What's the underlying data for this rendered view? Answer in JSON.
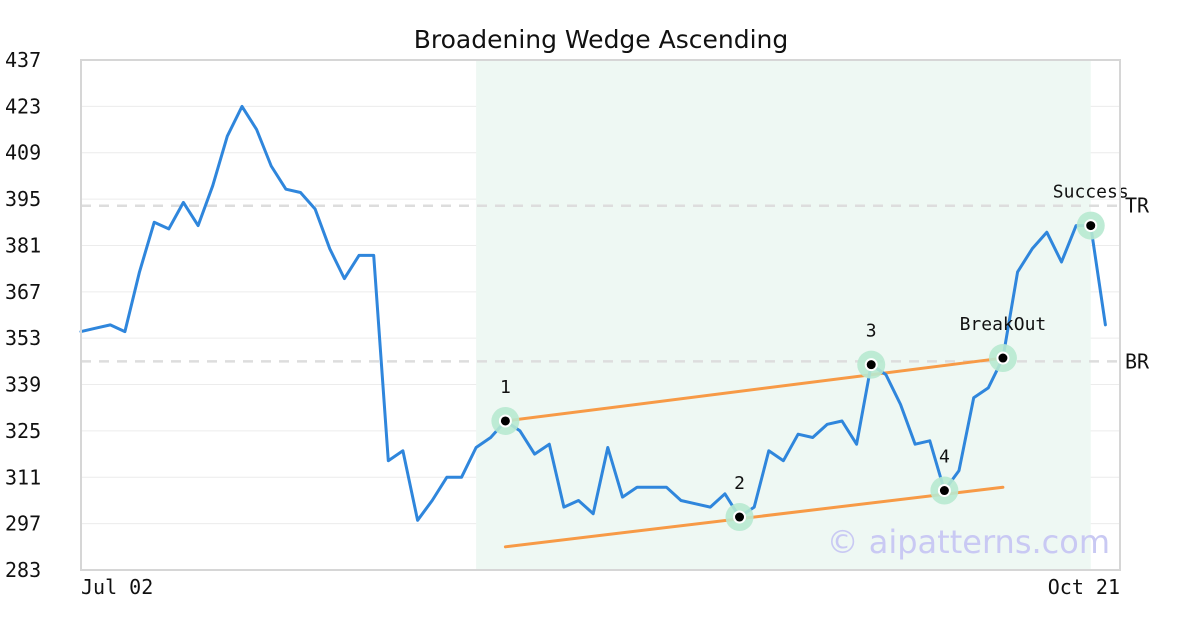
{
  "chart_data": {
    "type": "line",
    "title": "Broadening Wedge Ascending",
    "ylim": [
      283,
      437
    ],
    "yticks": [
      "437",
      "423",
      "409",
      "395",
      "381",
      "367",
      "353",
      "339",
      "325",
      "311",
      "297",
      "283"
    ],
    "xticks": [
      "Jul 02",
      "Oct 21"
    ],
    "grid": true,
    "colors": {
      "price": "#2f86dc",
      "trend": "#f79a46",
      "pattern_zone": "#eef8f3",
      "marker_halo": "#b7e9d0",
      "ref_line": "#dddddd"
    },
    "series": [
      {
        "values": [
          355.0,
          356.0,
          357.0,
          355.0,
          373.0,
          388.0,
          386.0,
          394.0,
          387.0,
          399.0,
          414.0,
          423.0,
          416.0,
          405.0,
          398.0,
          397.0,
          392.0,
          380.0,
          371.0,
          378.0,
          378.0,
          316.0,
          319.0,
          298.0,
          304.0,
          311.0,
          311.0,
          320.0,
          323.0,
          328.0,
          325.0,
          318.0,
          321.0,
          302.0,
          304.0,
          300.0,
          320.0,
          305.0,
          308.0,
          308.0,
          308.0,
          304.0,
          303.0,
          302.0,
          306.0,
          299.0,
          302.0,
          319.0,
          316.0,
          324.0,
          323.0,
          327.0,
          328.0,
          321.0,
          345.0,
          342.0,
          333.0,
          321.0,
          322.0,
          307.0,
          313.0,
          335.0,
          338.0,
          347.0,
          373.0,
          380.0,
          385.0,
          376.0,
          387.0,
          387.0,
          357.0
        ]
      }
    ],
    "pattern_zone": [
      27,
      69
    ],
    "trendlines": [
      {
        "from": [
          29,
          328.0
        ],
        "to": [
          63,
          347.0
        ]
      },
      {
        "from": [
          29,
          290.0
        ],
        "to": [
          63,
          308.0
        ]
      }
    ],
    "reference_lines": [
      {
        "label": "TR",
        "y": 393.0
      },
      {
        "label": "BR",
        "y": 346.0
      }
    ],
    "points": [
      {
        "label": "1",
        "x": 29,
        "y": 328.0
      },
      {
        "label": "2",
        "x": 45,
        "y": 299.0
      },
      {
        "label": "3",
        "x": 54,
        "y": 345.0
      },
      {
        "label": "4",
        "x": 59,
        "y": 307.0
      },
      {
        "label": "BreakOut",
        "x": 63,
        "y": 347.0
      },
      {
        "label": "Success",
        "x": 69,
        "y": 387.0
      }
    ]
  },
  "watermark": "© aipatterns.com"
}
